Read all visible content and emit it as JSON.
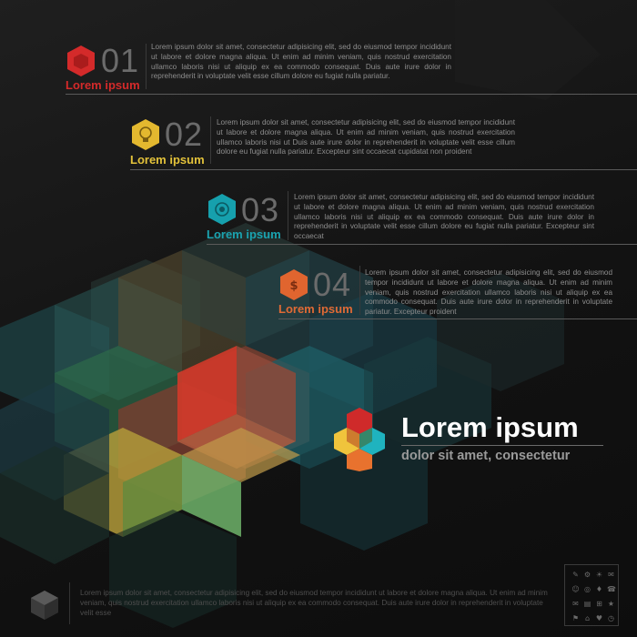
{
  "steps": [
    {
      "number": "01",
      "title": "Lorem ipsum",
      "color": "#d42a2a",
      "text": "Lorem ipsum dolor sit amet, consectetur adipisicing elit, sed do eiusmod tempor incididunt ut labore et dolore magna aliqua. Ut enim ad minim veniam, quis nostrud exercitation ullamco laboris nisi ut aliquip ex ea commodo consequat. Duis aute irure dolor in reprehenderit in voluptate velit esse cillum dolore eu fugiat nulla pariatur.",
      "icon": "cube-icon"
    },
    {
      "number": "02",
      "title": "Lorem ipsum",
      "color": "#e3c23a",
      "text": "Lorem ipsum dolor sit amet, consectetur adipisicing elit, sed do eiusmod tempor incididunt ut labore et dolore magna aliqua. Ut enim ad minim veniam, quis nostrud exercitation ullamco laboris nisi ut Duis aute irure dolor in reprehenderit in voluptate velit esse cillum dolore eu fugiat nulla pariatur. Excepteur sint occaecat cupidatat non proident",
      "icon": "lightbulb-icon"
    },
    {
      "number": "03",
      "title": "Lorem ipsum",
      "color": "#1aa3b0",
      "text": "Lorem ipsum dolor sit amet, consectetur adipisicing elit, sed do eiusmod tempor incididunt ut labore et dolore magna aliqua. Ut enim ad minim veniam, quis nostrud exercitation ullamco laboris nisi ut aliquip ex ea commodo consequat. Duis aute irure dolor in reprehenderit in voluptate velit esse cillum dolore eu fugiat nulla pariatur. Excepteur sint occaecat",
      "icon": "target-icon"
    },
    {
      "number": "04",
      "title": "Lorem ipsum",
      "color": "#e06a35",
      "text": "Lorem ipsum dolor sit amet, consectetur adipisicing elit, sed do eiusmod tempor incididunt ut labore et dolore magna aliqua. Ut enim ad minim veniam, quis nostrud exercitation ullamco laboris nisi ut aliquip ex ea commodo consequat. Duis aute irure dolor in reprehenderit in voluptate pariatur. Excepteur proident",
      "icon": "dollar-icon"
    }
  ],
  "brand": {
    "title": "Lorem ipsum",
    "subtitle": "dolor sit amet, consectetur",
    "colors": {
      "red": "#cf2a2a",
      "yellow": "#f0c43c",
      "teal": "#1fb3bf",
      "orange": "#e8722e",
      "green": "#2e8f59"
    }
  },
  "footer": {
    "text": "Lorem ipsum dolor sit amet, consectetur adipisicing elit, sed do eiusmod tempor incididunt ut labore et dolore magna aliqua. Ut enim ad minim veniam, quis nostrud exercitation ullamco laboris nisi ut aliquip ex ea commodo consequat. Duis aute irure dolor in reprehenderit in voluptate velit esse",
    "icons": [
      "wrench-icon",
      "gear-icon",
      "bulb-icon",
      "chat-icon",
      "user-icon",
      "globe-icon",
      "pin-icon",
      "phone-icon",
      "mail-icon",
      "chart-icon",
      "cart-icon",
      "star-icon"
    ]
  }
}
